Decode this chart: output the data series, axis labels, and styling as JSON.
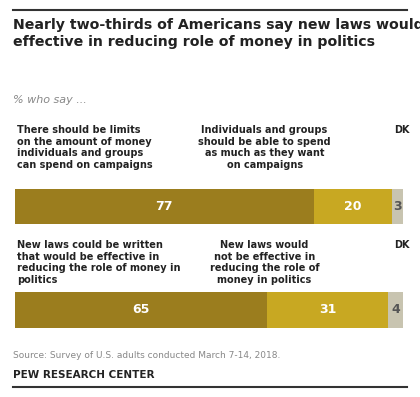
{
  "title_line1": "Nearly two-thirds of Americans say new laws would be",
  "title_line2": "effective in reducing role of money in politics",
  "subtitle": "% who say ...",
  "source": "Source: Survey of U.S. adults conducted March 7-14, 2018.",
  "brand": "PEW RESEARCH CENTER",
  "bars": [
    {
      "values": [
        77,
        20,
        3
      ],
      "colors": [
        "#9b7d1e",
        "#c8a822",
        "#c8c4b0"
      ],
      "label_left": "There should be limits\non the amount of money\nindividuals and groups\ncan spend on campaigns",
      "label_mid": "Individuals and groups\nshould be able to spend\nas much as they want\non campaigns",
      "label_dk": "DK"
    },
    {
      "values": [
        65,
        31,
        4
      ],
      "colors": [
        "#9b7d1e",
        "#c8a822",
        "#c8c4b0"
      ],
      "label_left": "New laws could be written\nthat would be effective in\nreducing the role of money in\npolitics",
      "label_mid": "New laws would\nnot be effective in\nreducing the role of\nmoney in politics",
      "label_dk": "DK"
    }
  ],
  "background_color": "#ffffff",
  "top_line_color": "#333333",
  "bottom_line_color": "#333333",
  "text_color": "#222222",
  "source_color": "#888888",
  "subtitle_color": "#888888"
}
